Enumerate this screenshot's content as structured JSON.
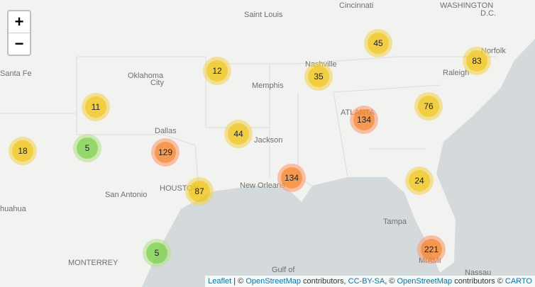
{
  "zoom_controls": {
    "zoom_in": "+",
    "zoom_out": "−"
  },
  "place_labels": [
    "Saint Louis",
    "Cincinnati",
    "WASHINGTON",
    "D.C.",
    "Norfolk",
    "Raleigh",
    "Nashville",
    "Santa Fe",
    "Oklahoma",
    "City",
    "Memphis",
    "ATLANTA",
    "Dallas",
    "Jackson",
    "San Antonio",
    "HOUSTON",
    "New Orleans",
    "Tampa",
    "MONTERREY",
    "Gulf of",
    "MIAMI",
    "Nassau",
    "huahua"
  ],
  "clusters": [
    18,
    5,
    11,
    12,
    129,
    44,
    87,
    5,
    134,
    35,
    45,
    134,
    76,
    83,
    24,
    221
  ],
  "attribution": [
    {
      "text": "Leaflet",
      "link": true
    },
    {
      "text": " | © ",
      "link": false
    },
    {
      "text": "OpenStreetMap",
      "link": true
    },
    {
      "text": " contributors, ",
      "link": false
    },
    {
      "text": "CC-BY-SA",
      "link": true
    },
    {
      "text": ", © ",
      "link": false
    },
    {
      "text": "OpenStreetMap",
      "link": true
    },
    {
      "text": " contributors © ",
      "link": false
    },
    {
      "text": "CARTO",
      "link": true
    }
  ]
}
